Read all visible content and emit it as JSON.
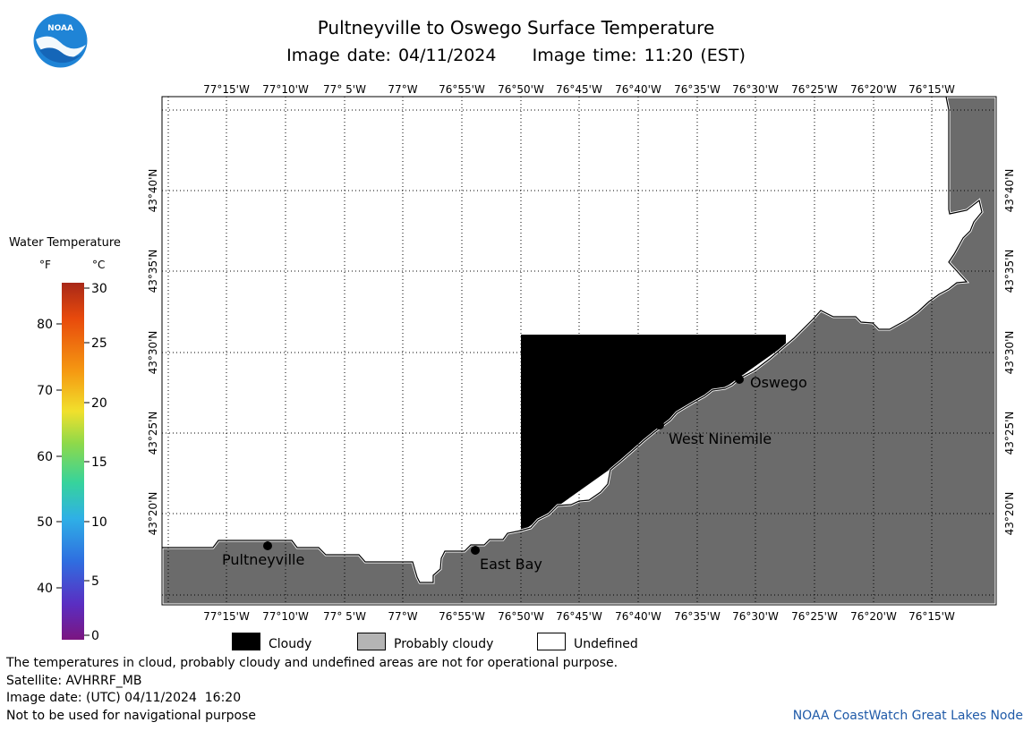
{
  "header": {
    "title": "Pultneyville to Oswego Surface Temperature",
    "date_line": "Image date: 04/11/2024     Image time: 11:20 (EST)"
  },
  "logo": {
    "text": "NOAA",
    "icon": "noaa-logo"
  },
  "map": {
    "lon_labels": [
      "77°15'W",
      "77°10'W",
      "77° 5'W",
      "77°W",
      "76°55'W",
      "76°50'W",
      "76°45'W",
      "76°40'W",
      "76°35'W",
      "76°30'W",
      "76°25'W",
      "76°20'W",
      "76°15'W"
    ],
    "lat_labels": [
      "43°40'N",
      "43°35'N",
      "43°30'N",
      "43°25'N",
      "43°20'N"
    ],
    "places": [
      {
        "name": "Pultneyville"
      },
      {
        "name": "East Bay"
      },
      {
        "name": "West Ninemile"
      },
      {
        "name": "Oswego"
      }
    ],
    "colors": {
      "land": "#6b6b6b",
      "cloud": "#000000",
      "water_undefined": "#ffffff",
      "grid": "#000000"
    }
  },
  "color_scale": {
    "title": "Water Temperature",
    "unit_f": "°F",
    "unit_c": "°C",
    "f_ticks": [
      "80",
      "70",
      "60",
      "50",
      "40"
    ],
    "c_ticks": [
      "30",
      "25",
      "20",
      "15",
      "10",
      "5",
      "0"
    ],
    "gradient": [
      "#a82818",
      "#e84a0c",
      "#f59a12",
      "#f1e02c",
      "#8ed94a",
      "#36d39c",
      "#2fb0e6",
      "#2f6ee0",
      "#5a2ec2",
      "#7b1580"
    ]
  },
  "legend": {
    "cloudy": "Cloudy",
    "probably_cloudy": "Probably cloudy",
    "undefined": "Undefined",
    "cloudy_color": "#000000",
    "probably_cloudy_color": "#b4b4b4",
    "undefined_color": "#ffffff"
  },
  "notes": {
    "disclaimer": "The temperatures in cloud, probably cloudy and undefined areas are not for operational purpose.",
    "satellite": "Satellite: AVHRRF_MB",
    "utc_date": "Image date: (UTC) 04/11/2024  16:20",
    "navigation": "Not to be used for navigational purpose"
  },
  "credit": "NOAA CoastWatch Great Lakes Node"
}
